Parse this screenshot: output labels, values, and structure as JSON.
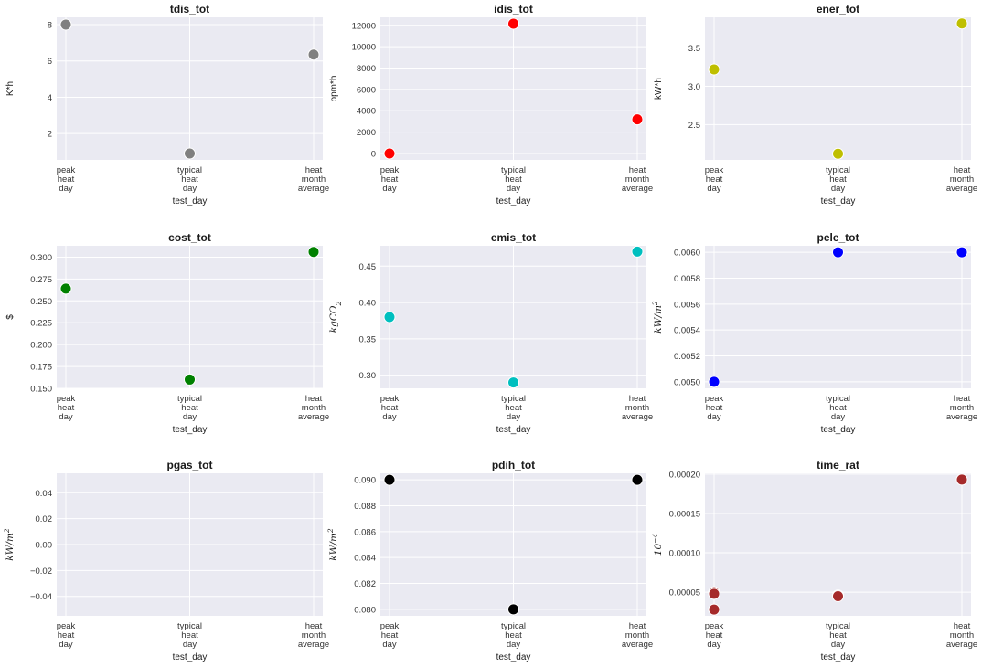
{
  "chart_data": [
    {
      "type": "scatter",
      "title": "tdis_tot",
      "xlabel": "test_day",
      "ylabel": "K*h",
      "x": [
        "peak heat day",
        "typical heat day",
        "heat month average"
      ],
      "series": [
        {
          "values": [
            8.0,
            0.9,
            6.35
          ],
          "color": "#808080"
        }
      ],
      "ylim": [
        0.55,
        8.4
      ],
      "yticks": [
        2,
        4,
        6,
        8
      ],
      "ytick_labels": [
        "2",
        "4",
        "6",
        "8"
      ],
      "grid": true
    },
    {
      "type": "scatter",
      "title": "idis_tot",
      "xlabel": "test_day",
      "ylabel": "ppm*h",
      "x": [
        "peak heat day",
        "typical heat day",
        "heat month average"
      ],
      "series": [
        {
          "values": [
            0,
            12150,
            3200
          ],
          "color": "#ff0000"
        }
      ],
      "ylim": [
        -600,
        12750
      ],
      "yticks": [
        0,
        2000,
        4000,
        6000,
        8000,
        10000,
        12000
      ],
      "ytick_labels": [
        "0",
        "2000",
        "4000",
        "6000",
        "8000",
        "10000",
        "12000"
      ],
      "grid": true
    },
    {
      "type": "scatter",
      "title": "ener_tot",
      "xlabel": "test_day",
      "ylabel": "kW*h",
      "x": [
        "peak heat day",
        "typical heat day",
        "heat month average"
      ],
      "series": [
        {
          "values": [
            3.22,
            2.12,
            3.82
          ],
          "color": "#bfbf00"
        }
      ],
      "ylim": [
        2.04,
        3.9
      ],
      "yticks": [
        2.5,
        3.0,
        3.5
      ],
      "ytick_labels": [
        "2.5",
        "3.0",
        "3.5"
      ],
      "grid": true
    },
    {
      "type": "scatter",
      "title": "cost_tot",
      "xlabel": "test_day",
      "ylabel": "$",
      "x": [
        "peak heat day",
        "typical heat day",
        "heat month average"
      ],
      "series": [
        {
          "values": [
            0.264,
            0.16,
            0.306
          ],
          "color": "#008000"
        }
      ],
      "ylim": [
        0.15,
        0.313
      ],
      "yticks": [
        0.15,
        0.175,
        0.2,
        0.225,
        0.25,
        0.275,
        0.3
      ],
      "ytick_labels": [
        "0.150",
        "0.175",
        "0.200",
        "0.225",
        "0.250",
        "0.275",
        "0.300"
      ],
      "grid": true
    },
    {
      "type": "scatter",
      "title": "emis_tot",
      "xlabel": "test_day",
      "ylabel": "kgCO2",
      "x": [
        "peak heat day",
        "typical heat day",
        "heat month average"
      ],
      "series": [
        {
          "values": [
            0.38,
            0.29,
            0.47
          ],
          "color": "#00bfbf"
        }
      ],
      "ylim": [
        0.282,
        0.478
      ],
      "yticks": [
        0.3,
        0.35,
        0.4,
        0.45
      ],
      "ytick_labels": [
        "0.30",
        "0.35",
        "0.40",
        "0.45"
      ],
      "grid": true
    },
    {
      "type": "scatter",
      "title": "pele_tot",
      "xlabel": "test_day",
      "ylabel": "kW/m2",
      "x": [
        "peak heat day",
        "typical heat day",
        "heat month average"
      ],
      "series": [
        {
          "values": [
            0.005,
            0.006,
            0.006
          ],
          "color": "#0000ff"
        }
      ],
      "ylim": [
        0.00495,
        0.00605
      ],
      "yticks": [
        0.005,
        0.0052,
        0.0054,
        0.0056,
        0.0058,
        0.006
      ],
      "ytick_labels": [
        "0.0050",
        "0.0052",
        "0.0054",
        "0.0056",
        "0.0058",
        "0.0060"
      ],
      "grid": true
    },
    {
      "type": "scatter",
      "title": "pgas_tot",
      "xlabel": "test_day",
      "ylabel": "kW/m2",
      "x": [
        "peak heat day",
        "typical heat day",
        "heat month average"
      ],
      "series": [],
      "ylim": [
        -0.055,
        0.055
      ],
      "yticks": [
        -0.04,
        -0.02,
        0.0,
        0.02,
        0.04
      ],
      "ytick_labels": [
        "−0.04",
        "−0.02",
        "0.00",
        "0.02",
        "0.04"
      ],
      "grid": true
    },
    {
      "type": "scatter",
      "title": "pdih_tot",
      "xlabel": "test_day",
      "ylabel": "kW/m2",
      "x": [
        "peak heat day",
        "typical heat day",
        "heat month average"
      ],
      "series": [
        {
          "values": [
            0.09,
            0.08,
            0.09
          ],
          "color": "#000000"
        }
      ],
      "ylim": [
        0.0795,
        0.0905
      ],
      "yticks": [
        0.08,
        0.082,
        0.084,
        0.086,
        0.088,
        0.09
      ],
      "ytick_labels": [
        "0.080",
        "0.082",
        "0.084",
        "0.086",
        "0.088",
        "0.090"
      ],
      "grid": true
    },
    {
      "type": "scatter",
      "title": "time_rat",
      "xlabel": "test_day",
      "ylabel": "10^-4",
      "x": [
        "peak heat day",
        "typical heat day",
        "heat month average"
      ],
      "points": [
        {
          "x": "peak heat day",
          "y": 5e-05
        },
        {
          "x": "peak heat day",
          "y": 4.8e-05
        },
        {
          "x": "peak heat day",
          "y": 2.8e-05
        },
        {
          "x": "typical heat day",
          "y": 4.6e-05
        },
        {
          "x": "typical heat day",
          "y": 4.5e-05
        },
        {
          "x": "heat month average",
          "y": 0.000193
        }
      ],
      "series": [
        {
          "values": [
            4.8e-05,
            4.6e-05,
            0.000193
          ],
          "color": "#a52a2a"
        }
      ],
      "ylim": [
        2e-05,
        0.000201
      ],
      "yticks": [
        5e-05,
        0.0001,
        0.00015,
        0.0002
      ],
      "ytick_labels": [
        "0.00005",
        "0.00010",
        "0.00015",
        "0.00020"
      ],
      "grid": true
    }
  ]
}
